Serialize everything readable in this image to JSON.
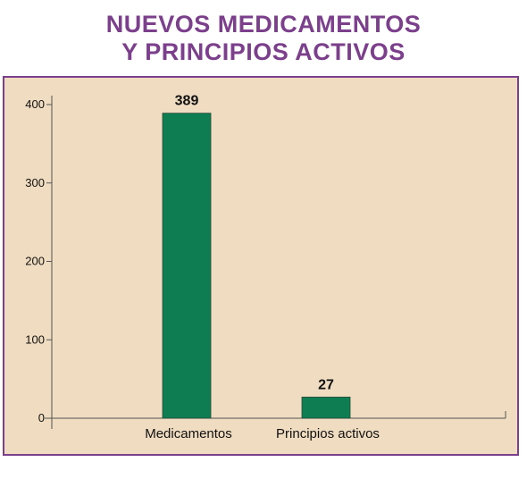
{
  "chart_data": {
    "type": "bar",
    "title": "NUEVOS MEDICAMENTOS\nY PRINCIPIOS ACTIVOS",
    "categories": [
      "Medicamentos",
      "Principios activos"
    ],
    "values": [
      389,
      27
    ],
    "data_labels": [
      "389",
      "27"
    ],
    "ylim": [
      0,
      400
    ],
    "yticks": [
      0,
      100,
      200,
      300,
      400
    ],
    "xlabel": "",
    "ylabel": "",
    "grid": false,
    "colors": {
      "bar": "#0e7e52",
      "title": "#7b3f8c",
      "panel": "#f0dcc0",
      "border": "#7b3f8c"
    }
  },
  "title_lines": [
    "NUEVOS MEDICAMENTOS",
    "Y PRINCIPIOS ACTIVOS"
  ]
}
